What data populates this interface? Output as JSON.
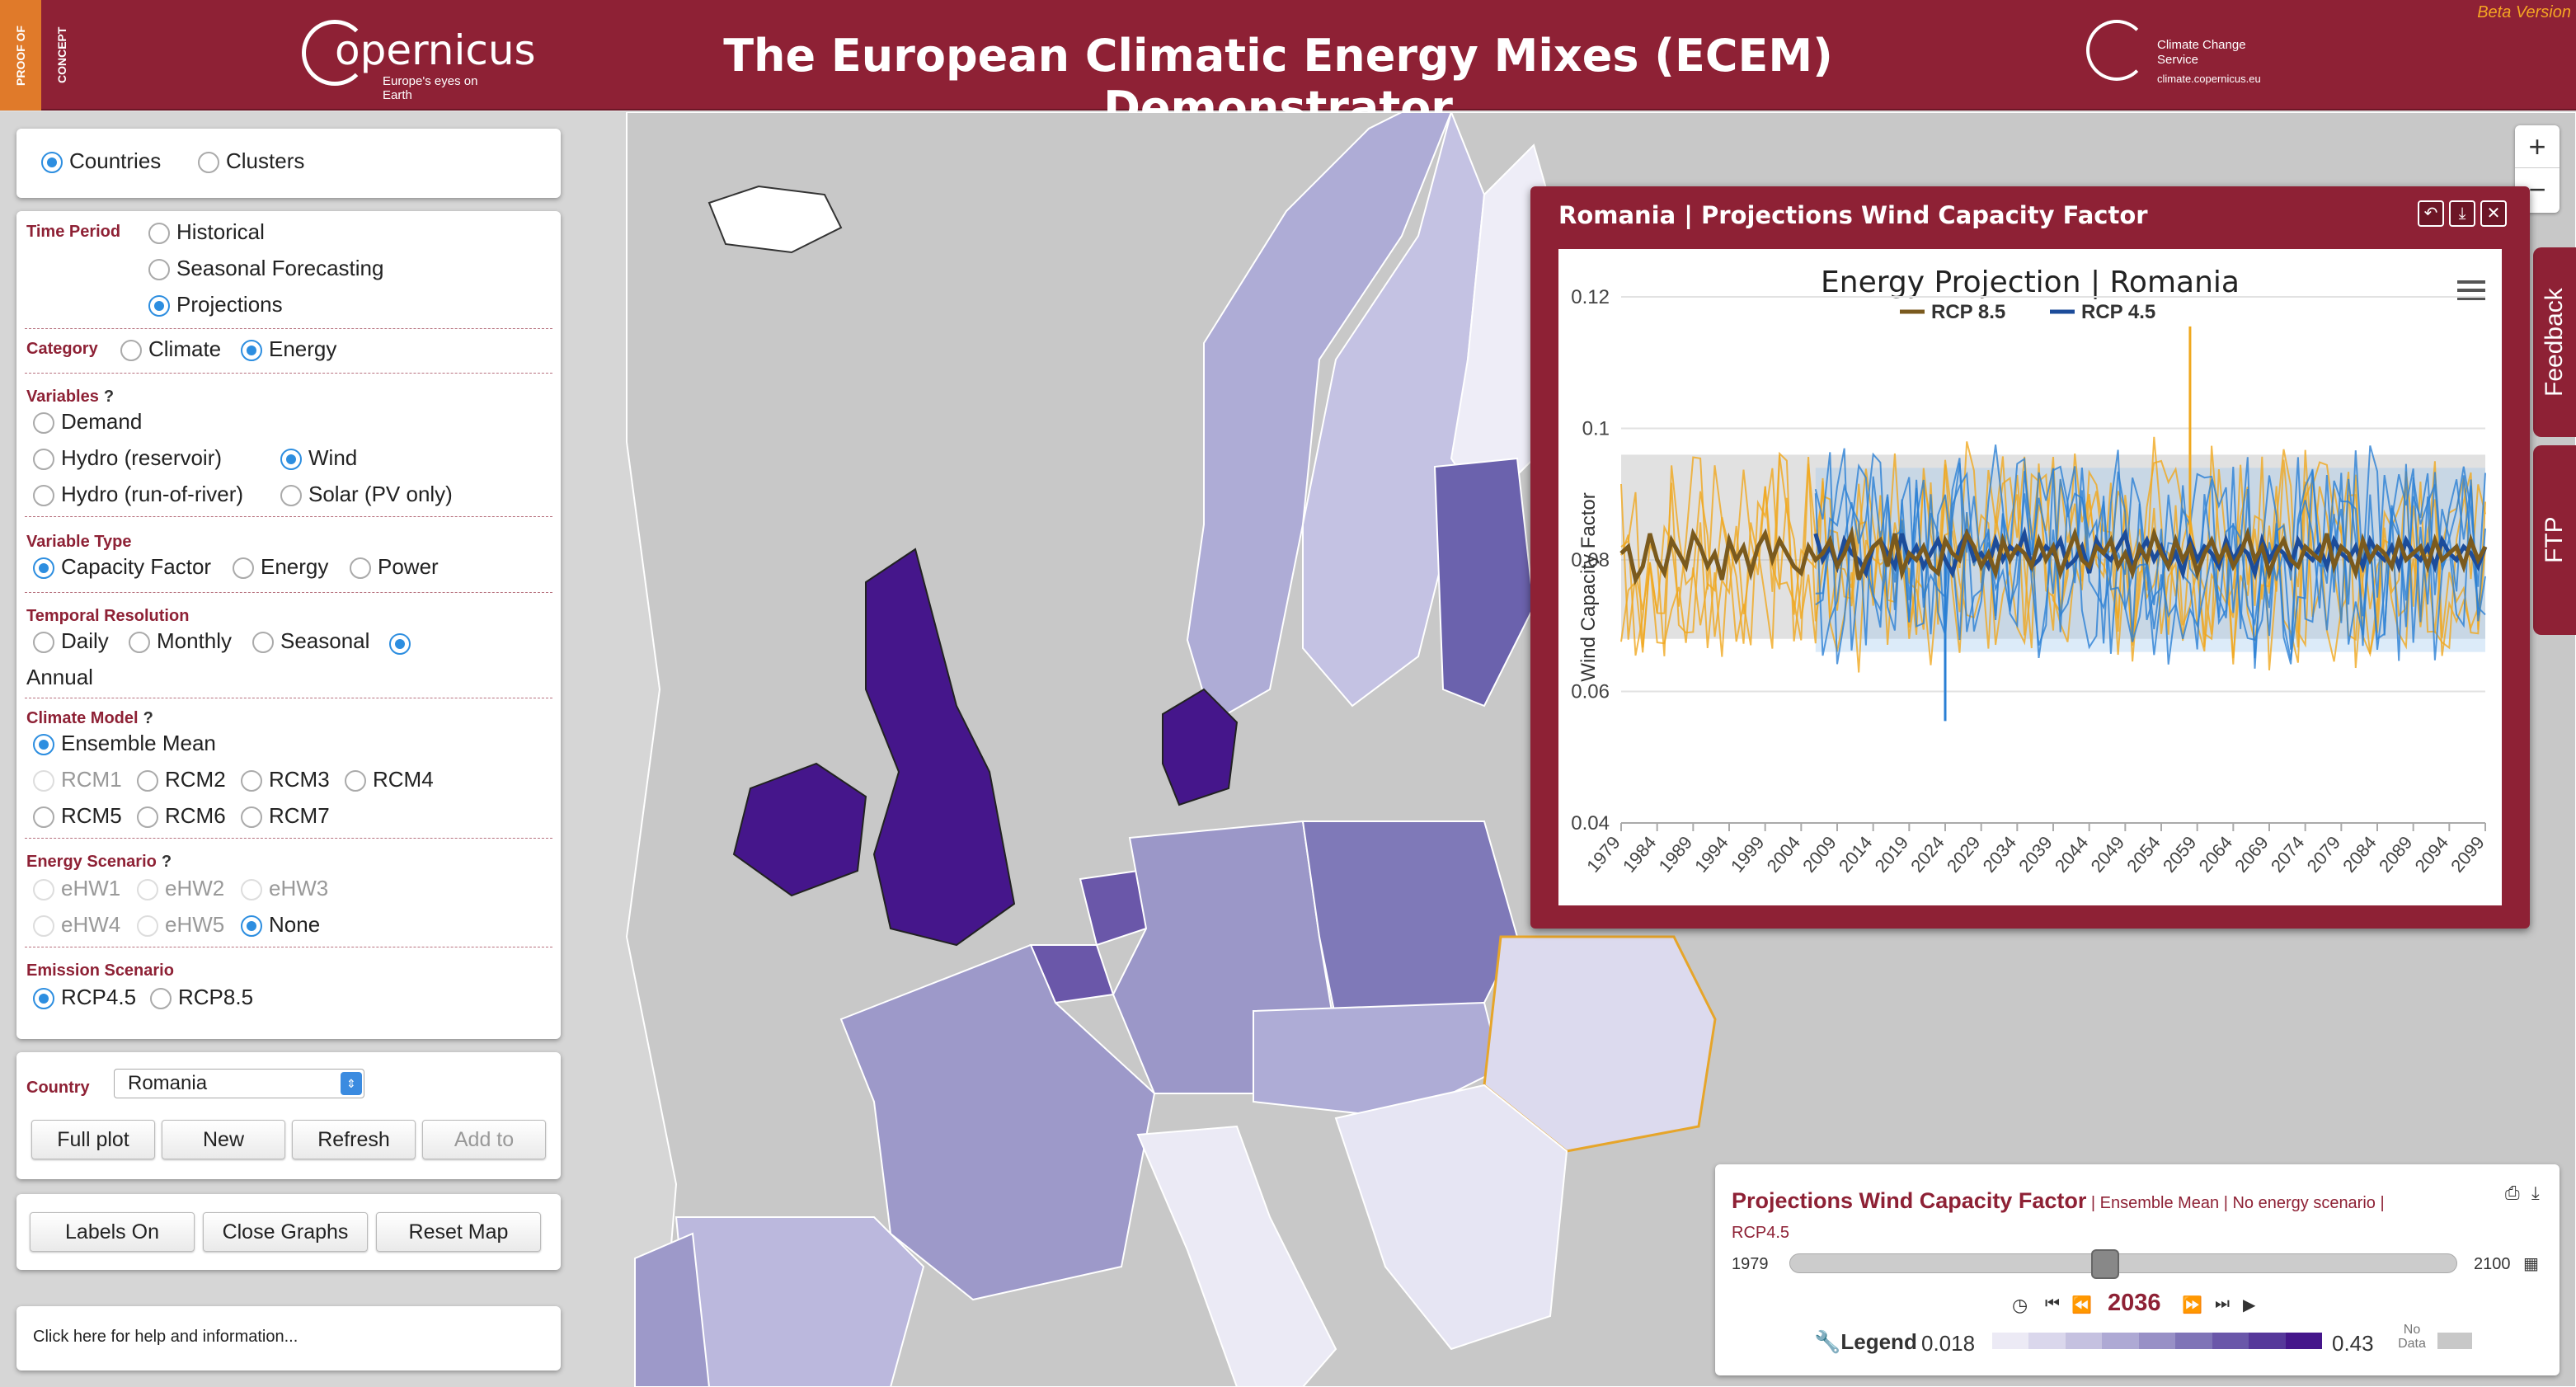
{
  "header": {
    "badge": "PROOF OF CONCEPT",
    "copernicus_name": "opernicus",
    "copernicus_tag": "Europe's eyes on Earth",
    "title": "The European Climatic Energy Mixes (ECEM) Demonstrator",
    "c3s_line1": "Climate Change Service",
    "c3s_line2": "climate.copernicus.eu",
    "beta": "Beta Version"
  },
  "mode": {
    "countries": "Countries",
    "clusters": "Clusters"
  },
  "sidebar": {
    "time_period_label": "Time Period",
    "historical": "Historical",
    "seasonal_forecasting": "Seasonal Forecasting",
    "projections": "Projections",
    "category_label": "Category",
    "climate": "Climate",
    "energy": "Energy",
    "variables_label": "Variables",
    "demand": "Demand",
    "hydro_reservoir": "Hydro (reservoir)",
    "wind": "Wind",
    "hydro_ror": "Hydro (run-of-river)",
    "solar": "Solar (PV only)",
    "variable_type_label": "Variable Type",
    "capacity_factor": "Capacity Factor",
    "energy_type": "Energy",
    "power": "Power",
    "temporal_label": "Temporal Resolution",
    "daily": "Daily",
    "monthly": "Monthly",
    "seasonal": "Seasonal",
    "annual": "Annual",
    "climate_model_label": "Climate Model",
    "ensemble_mean": "Ensemble Mean",
    "rcm1": "RCM1",
    "rcm2": "RCM2",
    "rcm3": "RCM3",
    "rcm4": "RCM4",
    "rcm5": "RCM5",
    "rcm6": "RCM6",
    "rcm7": "RCM7",
    "energy_scenario_label": "Energy Scenario",
    "ehw1": "eHW1",
    "ehw2": "eHW2",
    "ehw3": "eHW3",
    "ehw4": "eHW4",
    "ehw5": "eHW5",
    "none": "None",
    "emission_label": "Emission Scenario",
    "rcp45": "RCP4.5",
    "rcp85": "RCP8.5",
    "q": "?"
  },
  "country_panel": {
    "label": "Country",
    "selected": "Romania",
    "full_plot": "Full plot",
    "new": "New",
    "refresh": "Refresh",
    "add_to": "Add to"
  },
  "map_buttons": {
    "labels_on": "Labels On",
    "close_graphs": "Close Graphs",
    "reset_map": "Reset Map"
  },
  "help": "Click here for help and information...",
  "zoom": {
    "in": "+",
    "out": "−"
  },
  "tabs": {
    "feedback": "Feedback",
    "ftp": "FTP"
  },
  "popup": {
    "title": "Romania | Projections Wind Capacity Factor"
  },
  "colors": {
    "rcp85": "#f0a81e",
    "rcp85_mean": "#7a5a1e",
    "rcp45": "#2a7fd4",
    "rcp45_mean": "#1c4c9a",
    "brand": "#8e2135"
  },
  "chart_data": {
    "type": "line",
    "title": "Energy Projection | Romania",
    "xlabel": "",
    "ylabel": "Wind Capacity Factor",
    "ylim": [
      0.04,
      0.12
    ],
    "yticks": [
      0.04,
      0.06,
      0.08,
      0.1,
      0.12
    ],
    "ytick_labels": [
      "0.04",
      "0.06",
      "0.08",
      "0.1",
      "0.12"
    ],
    "xlim": [
      1979,
      2099
    ],
    "xticks": [
      1979,
      1984,
      1989,
      1994,
      1999,
      2004,
      2009,
      2014,
      2019,
      2024,
      2029,
      2034,
      2039,
      2044,
      2049,
      2054,
      2059,
      2064,
      2069,
      2074,
      2079,
      2084,
      2089,
      2094,
      2099
    ],
    "legend_position": "top-center",
    "series": [
      {
        "name": "RCP 8.5",
        "mean": [
          0.081,
          0.082,
          0.077,
          0.079,
          0.084,
          0.08,
          0.078,
          0.083,
          0.081,
          0.079,
          0.084,
          0.082,
          0.079,
          0.081,
          0.077,
          0.083,
          0.08,
          0.082,
          0.078,
          0.082,
          0.084,
          0.08,
          0.083,
          0.081,
          0.079,
          0.078,
          0.082,
          0.08,
          0.081,
          0.083,
          0.079,
          0.081,
          0.084,
          0.077,
          0.08,
          0.082,
          0.083,
          0.079,
          0.084,
          0.078,
          0.081,
          0.08,
          0.082,
          0.079,
          0.078,
          0.083,
          0.081,
          0.08,
          0.084,
          0.082,
          0.079,
          0.081,
          0.078,
          0.083,
          0.08,
          0.082,
          0.081,
          0.079,
          0.083,
          0.08,
          0.082,
          0.078,
          0.081,
          0.084,
          0.08,
          0.079,
          0.082,
          0.081,
          0.083,
          0.079,
          0.081,
          0.078,
          0.082,
          0.08,
          0.084,
          0.081,
          0.079,
          0.083,
          0.08,
          0.082,
          0.078,
          0.081,
          0.083,
          0.08,
          0.082,
          0.079,
          0.081,
          0.084,
          0.08,
          0.082,
          0.078,
          0.081,
          0.083,
          0.08,
          0.079,
          0.082,
          0.081,
          0.08,
          0.084,
          0.079,
          0.082,
          0.081,
          0.078,
          0.083,
          0.08,
          0.082,
          0.081,
          0.079,
          0.083,
          0.08,
          0.081,
          0.082,
          0.079,
          0.083,
          0.08,
          0.081,
          0.082,
          0.079,
          0.083,
          0.08,
          0.082
        ],
        "spread": [
          0.068,
          0.096
        ],
        "max": 0.1155
      },
      {
        "name": "RCP 4.5",
        "mean": [
          0.08,
          0.081,
          0.083,
          0.079,
          0.082,
          0.084,
          0.08,
          0.079,
          0.083,
          0.081,
          0.078,
          0.082,
          0.084,
          0.079,
          0.081,
          0.083,
          0.08,
          0.082,
          0.079,
          0.083,
          0.081,
          0.078,
          0.082,
          0.08,
          0.083,
          0.079,
          0.081,
          0.084,
          0.08,
          0.082,
          0.079,
          0.083,
          0.081,
          0.08,
          0.078,
          0.082,
          0.083,
          0.081,
          0.079,
          0.084,
          0.08,
          0.082,
          0.079,
          0.081,
          0.083,
          0.08,
          0.078,
          0.082,
          0.084,
          0.08,
          0.081,
          0.079,
          0.083,
          0.08,
          0.082,
          0.081,
          0.084,
          0.079,
          0.08,
          0.082,
          0.081,
          0.083,
          0.079,
          0.08,
          0.082,
          0.078,
          0.083,
          0.081,
          0.08,
          0.082,
          0.084,
          0.079,
          0.081,
          0.083,
          0.08,
          0.082,
          0.079,
          0.081,
          0.078,
          0.083,
          0.08,
          0.082,
          0.081,
          0.079,
          0.083,
          0.08,
          0.082,
          0.081,
          0.078,
          0.083,
          0.08,
          0.082,
          0.081,
          0.079,
          0.083,
          0.081,
          0.08,
          0.082,
          0.079,
          0.083,
          0.081,
          0.08,
          0.082,
          0.079,
          0.083,
          0.081,
          0.08,
          0.082,
          0.079,
          0.083,
          0.081,
          0.08,
          0.082,
          0.079,
          0.083,
          0.081,
          0.08,
          0.082,
          0.081,
          0.079,
          0.082
        ],
        "spread": [
          0.066,
          0.094
        ],
        "min": 0.0555
      }
    ]
  },
  "timebar": {
    "title": "Projections Wind Capacity Factor",
    "subtitle": " | Ensemble Mean | No energy scenario |",
    "subtitle2": "RCP4.5",
    "start": "1979",
    "end": "2100",
    "current": "2036",
    "current_fraction": 0.47,
    "legend_label": "Legend",
    "legend_min": "0.018",
    "legend_max": "0.43",
    "no_data": "No Data",
    "swatches": [
      "#eceaf5",
      "#dad7ec",
      "#c5c1e0",
      "#aea9d4",
      "#9890c6",
      "#7f74b7",
      "#6a57a9",
      "#56389a",
      "#45168b"
    ]
  }
}
